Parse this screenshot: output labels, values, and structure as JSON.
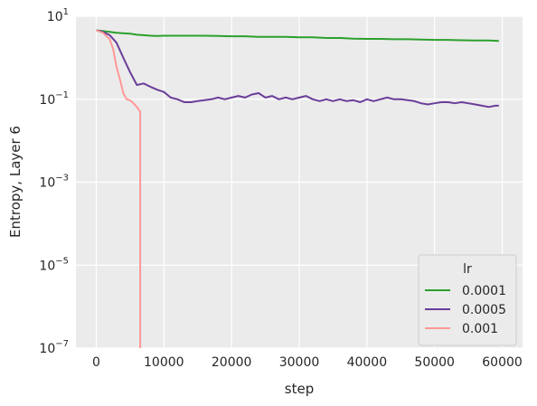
{
  "chart_data": {
    "type": "line",
    "title": "",
    "xlabel": "step",
    "ylabel": "Entropy, Layer 6",
    "xscale": "linear",
    "yscale": "log",
    "xlim": [
      -3000,
      63000
    ],
    "ylim": [
      1e-07,
      10
    ],
    "xticks": [
      0,
      10000,
      20000,
      30000,
      40000,
      50000,
      60000
    ],
    "yticks": [
      {
        "value": 10,
        "base": "10",
        "exp": "1"
      },
      {
        "value": 0.1,
        "base": "10",
        "exp": "−1"
      },
      {
        "value": 0.001,
        "base": "10",
        "exp": "−3"
      },
      {
        "value": 1e-05,
        "base": "10",
        "exp": "−5"
      },
      {
        "value": 1e-07,
        "base": "10",
        "exp": "−7"
      }
    ],
    "grid": true,
    "background": "#ebebeb",
    "legend": {
      "title": "lr",
      "placement": "lower-right"
    },
    "series": [
      {
        "name": "0.0001",
        "color": "#2ca02c",
        "points": [
          [
            0,
            4.6
          ],
          [
            1000,
            4.4
          ],
          [
            2000,
            4.2
          ],
          [
            3000,
            4.0
          ],
          [
            4000,
            3.9
          ],
          [
            5000,
            3.8
          ],
          [
            6000,
            3.6
          ],
          [
            7000,
            3.5
          ],
          [
            8000,
            3.4
          ],
          [
            9000,
            3.35
          ],
          [
            10000,
            3.4
          ],
          [
            12000,
            3.4
          ],
          [
            14000,
            3.4
          ],
          [
            16000,
            3.4
          ],
          [
            18000,
            3.35
          ],
          [
            20000,
            3.3
          ],
          [
            22000,
            3.3
          ],
          [
            24000,
            3.2
          ],
          [
            26000,
            3.2
          ],
          [
            28000,
            3.2
          ],
          [
            30000,
            3.1
          ],
          [
            32000,
            3.1
          ],
          [
            34000,
            3.0
          ],
          [
            36000,
            3.0
          ],
          [
            38000,
            2.9
          ],
          [
            40000,
            2.85
          ],
          [
            42000,
            2.85
          ],
          [
            44000,
            2.8
          ],
          [
            46000,
            2.8
          ],
          [
            48000,
            2.75
          ],
          [
            50000,
            2.7
          ],
          [
            52000,
            2.7
          ],
          [
            54000,
            2.65
          ],
          [
            56000,
            2.6
          ],
          [
            58000,
            2.6
          ],
          [
            59500,
            2.55
          ]
        ]
      },
      {
        "name": "0.0005",
        "color": "#6a3d9a",
        "points": [
          [
            0,
            4.6
          ],
          [
            1000,
            4.2
          ],
          [
            2000,
            3.5
          ],
          [
            3000,
            2.3
          ],
          [
            4000,
            1.0
          ],
          [
            5000,
            0.45
          ],
          [
            6000,
            0.22
          ],
          [
            7000,
            0.24
          ],
          [
            8000,
            0.2
          ],
          [
            9000,
            0.17
          ],
          [
            10000,
            0.15
          ],
          [
            11000,
            0.11
          ],
          [
            12000,
            0.1
          ],
          [
            13000,
            0.085
          ],
          [
            14000,
            0.085
          ],
          [
            15000,
            0.09
          ],
          [
            16000,
            0.095
          ],
          [
            17000,
            0.1
          ],
          [
            18000,
            0.11
          ],
          [
            19000,
            0.1
          ],
          [
            20000,
            0.11
          ],
          [
            21000,
            0.12
          ],
          [
            22000,
            0.11
          ],
          [
            23000,
            0.13
          ],
          [
            24000,
            0.14
          ],
          [
            25000,
            0.11
          ],
          [
            26000,
            0.12
          ],
          [
            27000,
            0.1
          ],
          [
            28000,
            0.11
          ],
          [
            29000,
            0.1
          ],
          [
            30000,
            0.11
          ],
          [
            31000,
            0.12
          ],
          [
            32000,
            0.1
          ],
          [
            33000,
            0.09
          ],
          [
            34000,
            0.1
          ],
          [
            35000,
            0.09
          ],
          [
            36000,
            0.1
          ],
          [
            37000,
            0.09
          ],
          [
            38000,
            0.095
          ],
          [
            39000,
            0.085
          ],
          [
            40000,
            0.1
          ],
          [
            41000,
            0.09
          ],
          [
            42000,
            0.1
          ],
          [
            43000,
            0.11
          ],
          [
            44000,
            0.1
          ],
          [
            45000,
            0.1
          ],
          [
            46000,
            0.095
          ],
          [
            47000,
            0.09
          ],
          [
            48000,
            0.08
          ],
          [
            49000,
            0.075
          ],
          [
            50000,
            0.08
          ],
          [
            51000,
            0.085
          ],
          [
            52000,
            0.085
          ],
          [
            53000,
            0.08
          ],
          [
            54000,
            0.085
          ],
          [
            55000,
            0.08
          ],
          [
            56000,
            0.075
          ],
          [
            57000,
            0.07
          ],
          [
            58000,
            0.065
          ],
          [
            59000,
            0.07
          ],
          [
            59500,
            0.07
          ]
        ]
      },
      {
        "name": "0.001",
        "color": "#ff9896",
        "points": [
          [
            0,
            4.6
          ],
          [
            1000,
            4.0
          ],
          [
            2000,
            2.8
          ],
          [
            2500,
            1.6
          ],
          [
            3000,
            0.6
          ],
          [
            3500,
            0.3
          ],
          [
            4000,
            0.14
          ],
          [
            4500,
            0.1
          ],
          [
            5000,
            0.095
          ],
          [
            5500,
            0.08
          ],
          [
            6000,
            0.065
          ],
          [
            6500,
            0.05
          ],
          [
            6500,
            1e-07
          ]
        ]
      }
    ]
  }
}
